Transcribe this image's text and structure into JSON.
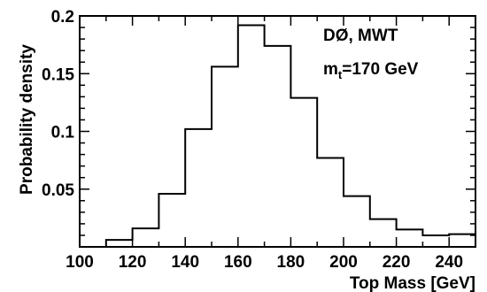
{
  "chart_data": {
    "type": "histogram",
    "title": "",
    "xlabel": "Top Mass [GeV]",
    "ylabel": "Probability density",
    "xlim": [
      100,
      250
    ],
    "ylim": [
      0,
      0.2
    ],
    "xticks": [
      100,
      120,
      140,
      160,
      180,
      200,
      220,
      240
    ],
    "yticks": [
      0.05,
      0.1,
      0.15,
      0.2
    ],
    "ytick_labels": [
      "0.05",
      "0.1",
      "0.15",
      "0.2"
    ],
    "bin_edges": [
      100,
      110,
      120,
      130,
      140,
      150,
      160,
      170,
      180,
      190,
      200,
      210,
      220,
      230,
      240,
      250
    ],
    "values": [
      0.0,
      0.006,
      0.016,
      0.046,
      0.102,
      0.156,
      0.192,
      0.174,
      0.129,
      0.077,
      0.044,
      0.024,
      0.015,
      0.01,
      0.011
    ],
    "grid": false,
    "annotations": {
      "experiment": "DØ, MWT",
      "mass_symbol": "m",
      "mass_subscript": "t",
      "mass_value": "=170 GeV"
    }
  }
}
